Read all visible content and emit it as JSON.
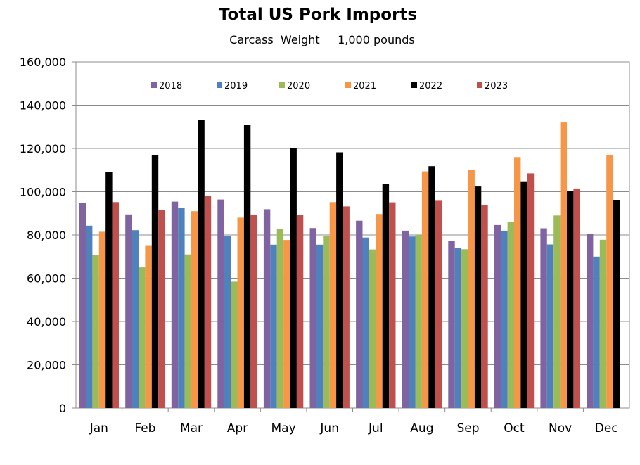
{
  "chart_data": {
    "type": "bar",
    "title": "Total US Pork Imports",
    "subtitle": "Carcass  Weight     1,000 pounds",
    "xlabel": "",
    "ylabel": "",
    "ylim": [
      0,
      160000
    ],
    "yticks": [
      "0",
      "20,000",
      "40,000",
      "60,000",
      "80,000",
      "100,000",
      "120,000",
      "140,000",
      "160,000"
    ],
    "grid": true,
    "legend_position": "top-inside",
    "categories": [
      "Jan",
      "Feb",
      "Mar",
      "Apr",
      "May",
      "Jun",
      "Jul",
      "Aug",
      "Sep",
      "Oct",
      "Nov",
      "Dec"
    ],
    "series": [
      {
        "name": "2018",
        "color": "#8064A2",
        "values": [
          94800,
          89500,
          95400,
          96400,
          91900,
          83200,
          86600,
          82000,
          77100,
          84600,
          83100,
          80500
        ]
      },
      {
        "name": "2019",
        "color": "#4F81BD",
        "values": [
          84300,
          82200,
          92500,
          79500,
          75500,
          75500,
          78800,
          79300,
          74000,
          82000,
          75600,
          70000
        ]
      },
      {
        "name": "2020",
        "color": "#9BBB59",
        "values": [
          70800,
          65000,
          71000,
          58400,
          82700,
          79400,
          73300,
          80000,
          73400,
          86000,
          89000,
          77800
        ]
      },
      {
        "name": "2021",
        "color": "#F79646",
        "values": [
          81500,
          75300,
          91000,
          88000,
          77700,
          95200,
          89700,
          109400,
          110000,
          116000,
          132000,
          116800
        ]
      },
      {
        "name": "2022",
        "color": "#000000",
        "values": [
          109200,
          117000,
          133200,
          131000,
          120200,
          118200,
          103500,
          111800,
          102400,
          104500,
          100500,
          96000
        ]
      },
      {
        "name": "2023",
        "color": "#C0504D",
        "values": [
          95200,
          91500,
          98000,
          89400,
          89300,
          93200,
          95100,
          95800,
          93800,
          108500,
          101500,
          null
        ]
      }
    ]
  }
}
